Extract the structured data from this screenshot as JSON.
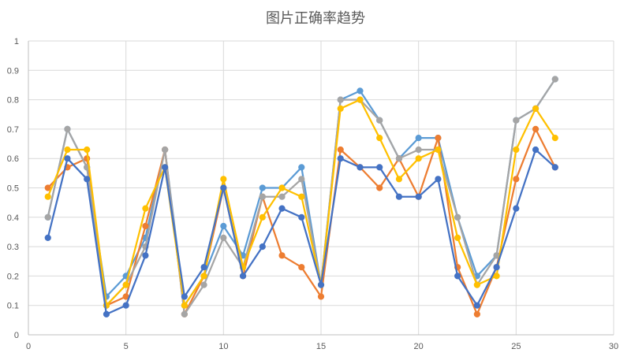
{
  "chart_data": {
    "type": "line",
    "title": "图片正确率趋势",
    "xlabel": "",
    "ylabel": "",
    "xlim": [
      0,
      30
    ],
    "ylim": [
      0,
      1
    ],
    "x_ticks": [
      0,
      5,
      10,
      15,
      20,
      25,
      30
    ],
    "y_ticks": [
      0,
      0.1,
      0.2,
      0.3,
      0.4,
      0.5,
      0.6,
      0.7,
      0.8,
      0.9,
      1
    ],
    "x_tick_labels": [
      "0",
      "5",
      "10",
      "15",
      "20",
      "25",
      "30"
    ],
    "y_tick_labels": [
      "0",
      "0.1",
      "0.2",
      "0.3",
      "0.4",
      "0.5",
      "0.6",
      "0.7",
      "0.8",
      "0.9",
      "1"
    ],
    "grid": true,
    "legend": "none",
    "x": [
      1,
      2,
      3,
      4,
      5,
      6,
      7,
      8,
      9,
      10,
      11,
      12,
      13,
      14,
      15,
      16,
      17,
      18,
      19,
      20,
      21,
      22,
      23,
      24,
      25,
      26,
      27
    ],
    "series": [
      {
        "color": "#5b9bd5",
        "values": [
          0.4,
          0.7,
          0.57,
          0.13,
          0.2,
          0.33,
          0.63,
          0.1,
          0.2,
          0.37,
          0.27,
          0.5,
          0.5,
          0.57,
          0.17,
          0.8,
          0.83,
          0.73,
          0.6,
          0.67,
          0.67,
          0.4,
          0.2,
          0.27,
          0.73,
          0.77,
          0.87
        ]
      },
      {
        "color": "#ed7d31",
        "values": [
          0.5,
          0.57,
          0.6,
          0.1,
          0.13,
          0.37,
          0.63,
          0.07,
          0.2,
          0.5,
          0.2,
          0.47,
          0.27,
          0.23,
          0.13,
          0.63,
          0.57,
          0.5,
          0.6,
          0.47,
          0.67,
          0.23,
          0.07,
          0.23,
          0.53,
          0.7,
          0.57
        ]
      },
      {
        "color": "#a5a5a5",
        "values": [
          0.4,
          0.7,
          0.57,
          0.1,
          0.17,
          0.3,
          0.63,
          0.07,
          0.17,
          0.33,
          0.23,
          0.47,
          0.47,
          0.53,
          0.17,
          0.8,
          0.8,
          0.73,
          0.6,
          0.63,
          0.63,
          0.4,
          0.17,
          0.27,
          0.73,
          0.77,
          0.87
        ]
      },
      {
        "color": "#ffc000",
        "values": [
          0.47,
          0.63,
          0.63,
          0.1,
          0.17,
          0.43,
          0.57,
          0.1,
          0.2,
          0.53,
          0.23,
          0.4,
          0.5,
          0.47,
          0.17,
          0.77,
          0.8,
          0.67,
          0.53,
          0.6,
          0.63,
          0.33,
          0.17,
          0.2,
          0.63,
          0.77,
          0.67
        ]
      },
      {
        "color": "#4472c4",
        "values": [
          0.33,
          0.6,
          0.53,
          0.07,
          0.1,
          0.27,
          0.57,
          0.13,
          0.23,
          0.5,
          0.2,
          0.3,
          0.43,
          0.4,
          0.17,
          0.6,
          0.57,
          0.57,
          0.47,
          0.47,
          0.53,
          0.2,
          0.1,
          0.23,
          0.43,
          0.63,
          0.57
        ]
      }
    ]
  }
}
